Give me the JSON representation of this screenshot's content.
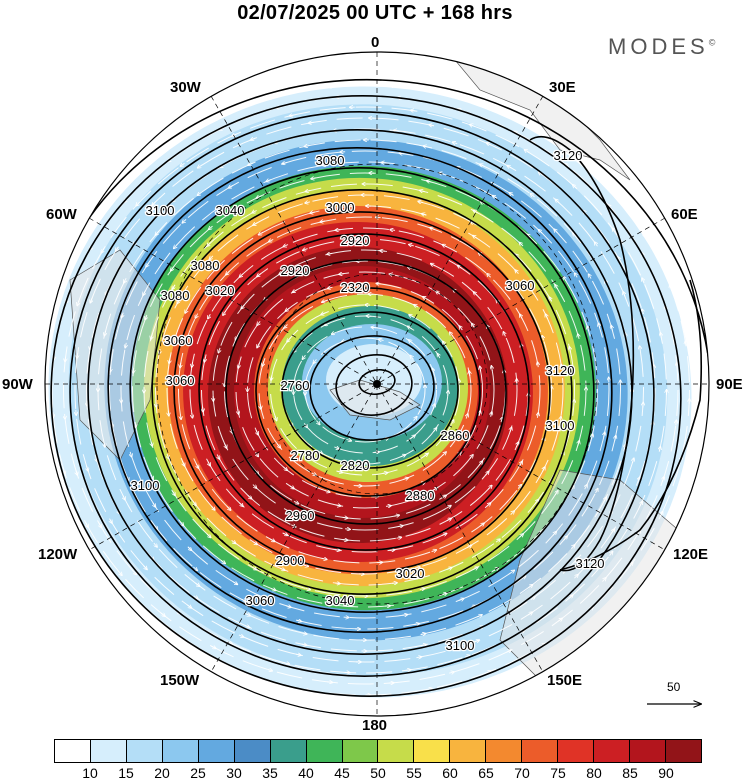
{
  "header": {
    "title": "02/07/2025  00 UTC  + 168 hrs",
    "brand": "MODES",
    "brand_mark": "©"
  },
  "longitude_labels": {
    "n0": "0",
    "e30": "30E",
    "e60": "60E",
    "e90": "90E",
    "e120": "120E",
    "e150": "150E",
    "s180": "180",
    "w150": "150W",
    "w120": "120W",
    "w90": "90W",
    "w60": "60W",
    "w30": "30W"
  },
  "contour_labels": [
    "3080",
    "3100",
    "3040",
    "3000",
    "2920",
    "3080",
    "3020",
    "2920",
    "2320",
    "3060",
    "3080",
    "3060",
    "3060",
    "2760",
    "2780",
    "2820",
    "2860",
    "2880",
    "2960",
    "2900",
    "3040",
    "3020",
    "3060",
    "3100",
    "3120",
    "3100",
    "3120",
    "3100",
    "3120"
  ],
  "reference_vector": {
    "label": "50"
  },
  "colorbar": {
    "colors": [
      "#ffffff",
      "#d6eefc",
      "#b4def7",
      "#8cc8ef",
      "#63a9e0",
      "#4b8cc6",
      "#3a9e8c",
      "#3fb558",
      "#7ec84a",
      "#c6dc4a",
      "#f9e04a",
      "#f8b43e",
      "#f3892f",
      "#ec5c2a",
      "#e03326",
      "#cc1f23",
      "#b3151d",
      "#921418"
    ],
    "tick_labels": [
      "10",
      "15",
      "20",
      "25",
      "30",
      "35",
      "40",
      "45",
      "50",
      "55",
      "60",
      "65",
      "70",
      "75",
      "80",
      "85",
      "90"
    ]
  }
}
